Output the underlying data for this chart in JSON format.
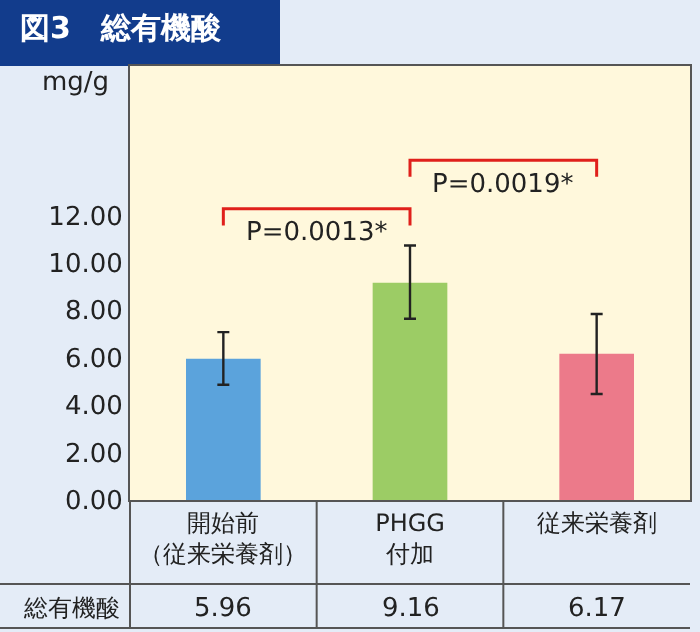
{
  "chart_data": {
    "type": "bar",
    "title": "図3　総有機酸",
    "ylabel": "mg/g",
    "categories": [
      "開始前（従来栄養剤）",
      "PHGG付加",
      "従来栄養剤"
    ],
    "series": [
      {
        "name": "総有機酸",
        "colors": [
          "#5ba3dc",
          "#9ccc65",
          "#ec7a8a"
        ],
        "values": [
          5.96,
          9.16,
          6.17
        ],
        "errors": [
          [
            4.86,
            7.08
          ],
          [
            7.64,
            10.73
          ],
          [
            4.47,
            7.84
          ]
        ]
      }
    ],
    "ylim": [
      0,
      18.3
    ],
    "yticks": [
      {
        "value": 0,
        "label": "0.00"
      },
      {
        "value": 2,
        "label": "2.00"
      },
      {
        "value": 4,
        "label": "4.00"
      },
      {
        "value": 6,
        "label": "6.00"
      },
      {
        "value": 8,
        "label": "8.00"
      },
      {
        "value": 10,
        "label": "10.00"
      },
      {
        "value": 12,
        "label": "12.00"
      }
    ],
    "data_labels": true,
    "grid": false,
    "legend": false,
    "annotations": [
      "P=0.0013*",
      "P=0.0019*"
    ]
  }
}
